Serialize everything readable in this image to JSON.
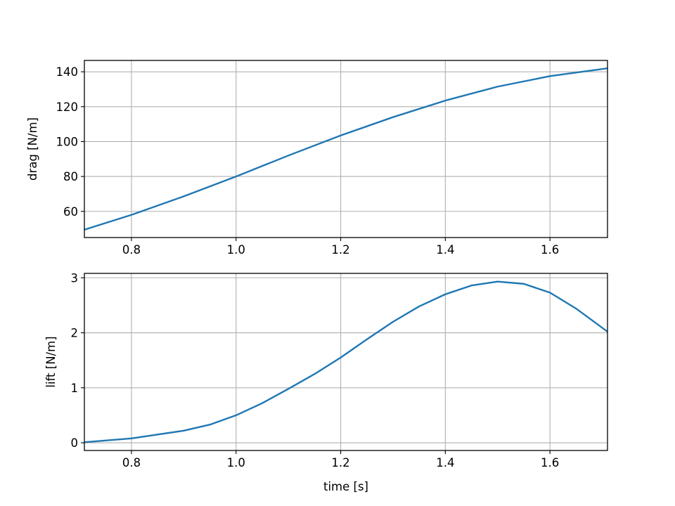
{
  "chart_data": [
    {
      "type": "line",
      "title": "",
      "xlabel": "",
      "ylabel": "drag [N/m]",
      "xlim": [
        0.71,
        1.71
      ],
      "ylim": [
        45.0,
        146.5
      ],
      "xticks": [
        0.8,
        1.0,
        1.2,
        1.4,
        1.6
      ],
      "xtick_labels": [
        "0.8",
        "1.0",
        "1.2",
        "1.4",
        "1.6"
      ],
      "yticks": [
        60,
        80,
        100,
        120,
        140
      ],
      "ytick_labels": [
        "60",
        "80",
        "100",
        "120",
        "140"
      ],
      "grid": true,
      "legend": "none",
      "color": "#1f77b4",
      "series": [
        {
          "x": [
            0.71,
            0.8,
            0.9,
            1.0,
            1.1,
            1.2,
            1.3,
            1.4,
            1.5,
            1.6,
            1.71
          ],
          "y": [
            49.5,
            58.0,
            68.6,
            80.0,
            92.0,
            103.5,
            114.0,
            123.5,
            131.5,
            137.5,
            142.0
          ]
        }
      ]
    },
    {
      "type": "line",
      "title": "",
      "xlabel": "time [s]",
      "ylabel": "lift [N/m]",
      "xlim": [
        0.71,
        1.71
      ],
      "ylim": [
        -0.14,
        3.08
      ],
      "xticks": [
        0.8,
        1.0,
        1.2,
        1.4,
        1.6
      ],
      "xtick_labels": [
        "0.8",
        "1.0",
        "1.2",
        "1.4",
        "1.6"
      ],
      "yticks": [
        0,
        1,
        2,
        3
      ],
      "ytick_labels": [
        "0",
        "1",
        "2",
        "3"
      ],
      "grid": true,
      "legend": "none",
      "color": "#1f77b4",
      "series": [
        {
          "x": [
            0.71,
            0.8,
            0.9,
            0.95,
            1.0,
            1.05,
            1.1,
            1.15,
            1.2,
            1.25,
            1.3,
            1.35,
            1.4,
            1.45,
            1.5,
            1.55,
            1.6,
            1.65,
            1.71
          ],
          "y": [
            0.01,
            0.08,
            0.22,
            0.33,
            0.5,
            0.72,
            0.98,
            1.25,
            1.55,
            1.88,
            2.2,
            2.48,
            2.7,
            2.86,
            2.93,
            2.89,
            2.73,
            2.44,
            2.02
          ]
        }
      ]
    }
  ]
}
